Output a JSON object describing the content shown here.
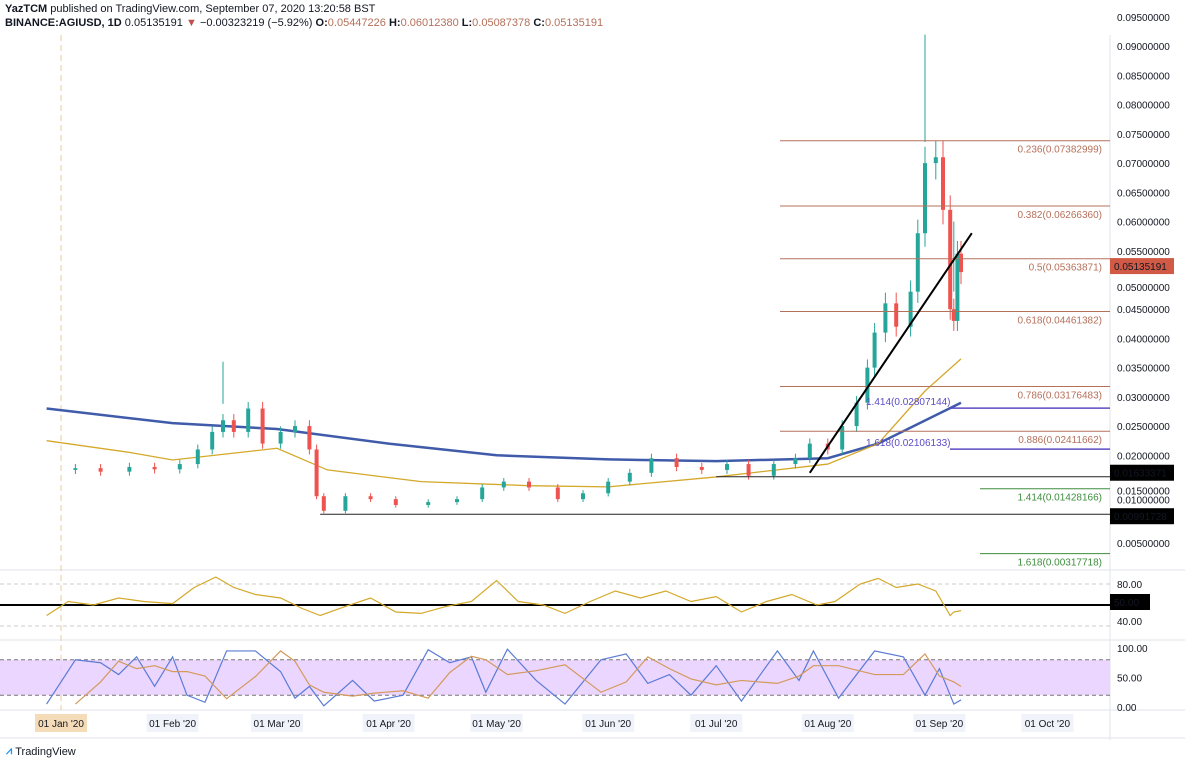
{
  "header": {
    "author": "YazTCM",
    "published": "published on TradingView.com, September 07, 2020 13:20:58 BST",
    "symbol": "BINANCE:AGIUSD, 1D",
    "last": "0.05135191",
    "change": "−0.00323219 (−5.92%)",
    "o_label": "O:",
    "o": "0.05447226",
    "h_label": "H:",
    "h": "0.06012380",
    "l_label": "L:",
    "l": "0.05087378",
    "c_label": "C:",
    "c": "0.05135191"
  },
  "footer": {
    "brand": "TradingView"
  },
  "colors": {
    "up": "#26a69a",
    "down": "#ef5350",
    "ma_long": "#3f5ba9",
    "ma_short": "#d4a82a",
    "fib": "#b5705a",
    "ext_purple": "#5b4bc4",
    "ext_green": "#3e8e3e",
    "rsi": "#d4a82a",
    "stoch_k": "#5b7bd5",
    "stoch_d": "#d49a5b",
    "stoch_band": "#e6ccff"
  },
  "chart_data": [
    {
      "type": "candlestick",
      "title": "BINANCE:AGIUSD, 1D",
      "yaxis_ticks": [
        "0.09500000",
        "0.09000000",
        "0.08500000",
        "0.08000000",
        "0.07500000",
        "0.07000000",
        "0.06500000",
        "0.06000000",
        "0.05500000",
        "0.05000000",
        "0.04500000",
        "0.04000000",
        "0.03500000",
        "0.03000000",
        "0.02500000",
        "0.02000000",
        "0.01500000",
        "0.01000000",
        "0.00500000"
      ],
      "ylim": [
        0.0025,
        0.0975
      ],
      "xaxis_ticks": [
        "01 Jan '20",
        "01 Feb '20",
        "01 Mar '20",
        "01 Apr '20",
        "01 May '20",
        "01 Jun '20",
        "01 Jul '20",
        "01 Aug '20",
        "01 Sep '20",
        "01 Oct '20"
      ],
      "xaxis_highlight": "2020",
      "closes": [
        [
          "2019-12-28",
          0.0175
        ],
        [
          "2020-01-05",
          0.0178
        ],
        [
          "2020-01-12",
          0.0172
        ],
        [
          "2020-01-20",
          0.018
        ],
        [
          "2020-01-27",
          0.0176
        ],
        [
          "2020-02-03",
          0.0185
        ],
        [
          "2020-02-08",
          0.021
        ],
        [
          "2020-02-12",
          0.024
        ],
        [
          "2020-02-15",
          0.026
        ],
        [
          "2020-02-18",
          0.024
        ],
        [
          "2020-02-22",
          0.028
        ],
        [
          "2020-02-26",
          0.022
        ],
        [
          "2020-03-02",
          0.024
        ],
        [
          "2020-03-06",
          0.025
        ],
        [
          "2020-03-10",
          0.021
        ],
        [
          "2020-03-12",
          0.013
        ],
        [
          "2020-03-14",
          0.0105
        ],
        [
          "2020-03-20",
          0.013
        ],
        [
          "2020-03-27",
          0.0125
        ],
        [
          "2020-04-03",
          0.0115
        ],
        [
          "2020-04-12",
          0.012
        ],
        [
          "2020-04-20",
          0.0125
        ],
        [
          "2020-04-27",
          0.0145
        ],
        [
          "2020-05-03",
          0.0155
        ],
        [
          "2020-05-10",
          0.0145
        ],
        [
          "2020-05-18",
          0.0125
        ],
        [
          "2020-05-25",
          0.0135
        ],
        [
          "2020-06-01",
          0.0155
        ],
        [
          "2020-06-07",
          0.017
        ],
        [
          "2020-06-13",
          0.0195
        ],
        [
          "2020-06-20",
          0.018
        ],
        [
          "2020-06-27",
          0.0175
        ],
        [
          "2020-07-04",
          0.0185
        ],
        [
          "2020-07-10",
          0.0165
        ],
        [
          "2020-07-17",
          0.0185
        ],
        [
          "2020-07-23",
          0.0195
        ],
        [
          "2020-07-27",
          0.022
        ],
        [
          "2020-08-01",
          0.021
        ],
        [
          "2020-08-05",
          0.025
        ],
        [
          "2020-08-09",
          0.029
        ],
        [
          "2020-08-12",
          0.035
        ],
        [
          "2020-08-14",
          0.041
        ],
        [
          "2020-08-17",
          0.046
        ],
        [
          "2020-08-20",
          0.042
        ],
        [
          "2020-08-24",
          0.048
        ],
        [
          "2020-08-26",
          0.058
        ],
        [
          "2020-08-28",
          0.07
        ],
        [
          "2020-08-31",
          0.071
        ],
        [
          "2020-09-02",
          0.062
        ],
        [
          "2020-09-04",
          0.045
        ],
        [
          "2020-09-05",
          0.043
        ],
        [
          "2020-09-06",
          0.0545
        ],
        [
          "2020-09-07",
          0.05135
        ]
      ],
      "highs": [
        [
          "2020-02-15",
          0.036
        ],
        [
          "2020-08-28",
          0.092
        ],
        [
          "2020-09-05",
          0.06
        ]
      ],
      "ma_long": [
        [
          "2019-12-28",
          0.028
        ],
        [
          "2020-02-01",
          0.0255
        ],
        [
          "2020-03-01",
          0.0245
        ],
        [
          "2020-04-01",
          0.022
        ],
        [
          "2020-05-01",
          0.02
        ],
        [
          "2020-06-01",
          0.0193
        ],
        [
          "2020-07-01",
          0.019
        ],
        [
          "2020-08-01",
          0.0195
        ],
        [
          "2020-08-15",
          0.022
        ],
        [
          "2020-09-07",
          0.029
        ]
      ],
      "ma_short": [
        [
          "2019-12-28",
          0.0225
        ],
        [
          "2020-01-20",
          0.0205
        ],
        [
          "2020-02-01",
          0.0192
        ],
        [
          "2020-03-01",
          0.0212
        ],
        [
          "2020-03-15",
          0.0175
        ],
        [
          "2020-04-10",
          0.0155
        ],
        [
          "2020-05-10",
          0.0148
        ],
        [
          "2020-06-01",
          0.0146
        ],
        [
          "2020-07-01",
          0.0163
        ],
        [
          "2020-08-01",
          0.0185
        ],
        [
          "2020-08-15",
          0.022
        ],
        [
          "2020-08-28",
          0.031
        ],
        [
          "2020-09-07",
          0.0365
        ]
      ],
      "fib_levels": [
        {
          "label": "0.236(0.07382999)",
          "value": 0.07382999
        },
        {
          "label": "0.382(0.06266360)",
          "value": 0.0626636
        },
        {
          "label": "0.5(0.05363871)",
          "value": 0.05363871
        },
        {
          "label": "0.618(0.04461382)",
          "value": 0.04461382
        },
        {
          "label": "0.786(0.03176483)",
          "value": 0.03176483
        },
        {
          "label": "0.886(0.02411662)",
          "value": 0.02411662
        }
      ],
      "ext_purple": [
        {
          "label": "1.414(0.02807144)",
          "value": 0.02807144
        },
        {
          "label": "1.618(0.02106133)",
          "value": 0.02106133
        }
      ],
      "ext_green": [
        {
          "label": "1.414(0.01428166)",
          "value": 0.01428166
        },
        {
          "label": "1.618(0.00317718)",
          "value": 0.00317718
        }
      ],
      "horizontal_lines": [
        {
          "label": "0.01633371",
          "value": 0.01633371,
          "from": "2020-07-01"
        },
        {
          "label": "0.00991728",
          "value": 0.00991728,
          "from": "2020-03-13"
        }
      ],
      "trendline": [
        [
          "2020-07-27",
          0.017
        ],
        [
          "2020-09-10",
          0.058
        ]
      ],
      "last_price_label": "0.05135191"
    },
    {
      "type": "line",
      "name": "RSI",
      "yaxis_ticks": [
        "80.00",
        "50.00",
        "40.00"
      ],
      "levels": [
        80,
        20
      ],
      "midline": 50,
      "values": [
        [
          "2019-12-28",
          35
        ],
        [
          "2020-01-03",
          55
        ],
        [
          "2020-01-10",
          50
        ],
        [
          "2020-01-17",
          60
        ],
        [
          "2020-01-24",
          55
        ],
        [
          "2020-02-01",
          52
        ],
        [
          "2020-02-07",
          75
        ],
        [
          "2020-02-13",
          90
        ],
        [
          "2020-02-18",
          75
        ],
        [
          "2020-02-24",
          65
        ],
        [
          "2020-03-02",
          60
        ],
        [
          "2020-03-08",
          45
        ],
        [
          "2020-03-13",
          35
        ],
        [
          "2020-03-20",
          48
        ],
        [
          "2020-03-27",
          60
        ],
        [
          "2020-04-03",
          40
        ],
        [
          "2020-04-10",
          38
        ],
        [
          "2020-04-17",
          48
        ],
        [
          "2020-04-24",
          55
        ],
        [
          "2020-05-01",
          85
        ],
        [
          "2020-05-07",
          55
        ],
        [
          "2020-05-14",
          50
        ],
        [
          "2020-05-20",
          38
        ],
        [
          "2020-05-27",
          55
        ],
        [
          "2020-06-03",
          70
        ],
        [
          "2020-06-10",
          60
        ],
        [
          "2020-06-17",
          70
        ],
        [
          "2020-06-24",
          55
        ],
        [
          "2020-07-01",
          62
        ],
        [
          "2020-07-08",
          40
        ],
        [
          "2020-07-15",
          55
        ],
        [
          "2020-07-22",
          65
        ],
        [
          "2020-07-29",
          50
        ],
        [
          "2020-08-03",
          55
        ],
        [
          "2020-08-10",
          80
        ],
        [
          "2020-08-15",
          88
        ],
        [
          "2020-08-20",
          75
        ],
        [
          "2020-08-26",
          80
        ],
        [
          "2020-08-31",
          70
        ],
        [
          "2020-09-04",
          35
        ],
        [
          "2020-09-05",
          40
        ],
        [
          "2020-09-07",
          42
        ]
      ]
    },
    {
      "type": "line",
      "name": "Stoch RSI",
      "yaxis_ticks": [
        "100.00",
        "50.00",
        "0.00"
      ],
      "levels": [
        80,
        20
      ],
      "k": [
        [
          "2019-12-28",
          5
        ],
        [
          "2020-01-05",
          80
        ],
        [
          "2020-01-12",
          75
        ],
        [
          "2020-01-17",
          55
        ],
        [
          "2020-01-22",
          85
        ],
        [
          "2020-01-27",
          35
        ],
        [
          "2020-02-01",
          85
        ],
        [
          "2020-02-05",
          20
        ],
        [
          "2020-02-10",
          8
        ],
        [
          "2020-02-16",
          95
        ],
        [
          "2020-02-24",
          95
        ],
        [
          "2020-03-02",
          60
        ],
        [
          "2020-03-06",
          15
        ],
        [
          "2020-03-10",
          35
        ],
        [
          "2020-03-14",
          2
        ],
        [
          "2020-03-22",
          45
        ],
        [
          "2020-03-28",
          10
        ],
        [
          "2020-04-05",
          20
        ],
        [
          "2020-04-12",
          97
        ],
        [
          "2020-04-18",
          75
        ],
        [
          "2020-04-24",
          85
        ],
        [
          "2020-04-28",
          25
        ],
        [
          "2020-05-04",
          98
        ],
        [
          "2020-05-12",
          45
        ],
        [
          "2020-05-20",
          5
        ],
        [
          "2020-05-30",
          80
        ],
        [
          "2020-06-06",
          90
        ],
        [
          "2020-06-12",
          40
        ],
        [
          "2020-06-18",
          55
        ],
        [
          "2020-06-24",
          20
        ],
        [
          "2020-07-01",
          70
        ],
        [
          "2020-07-08",
          10
        ],
        [
          "2020-07-18",
          95
        ],
        [
          "2020-07-24",
          45
        ],
        [
          "2020-07-28",
          95
        ],
        [
          "2020-08-04",
          15
        ],
        [
          "2020-08-14",
          95
        ],
        [
          "2020-08-22",
          85
        ],
        [
          "2020-08-28",
          20
        ],
        [
          "2020-09-01",
          65
        ],
        [
          "2020-09-05",
          5
        ],
        [
          "2020-09-07",
          12
        ]
      ]
    }
  ]
}
